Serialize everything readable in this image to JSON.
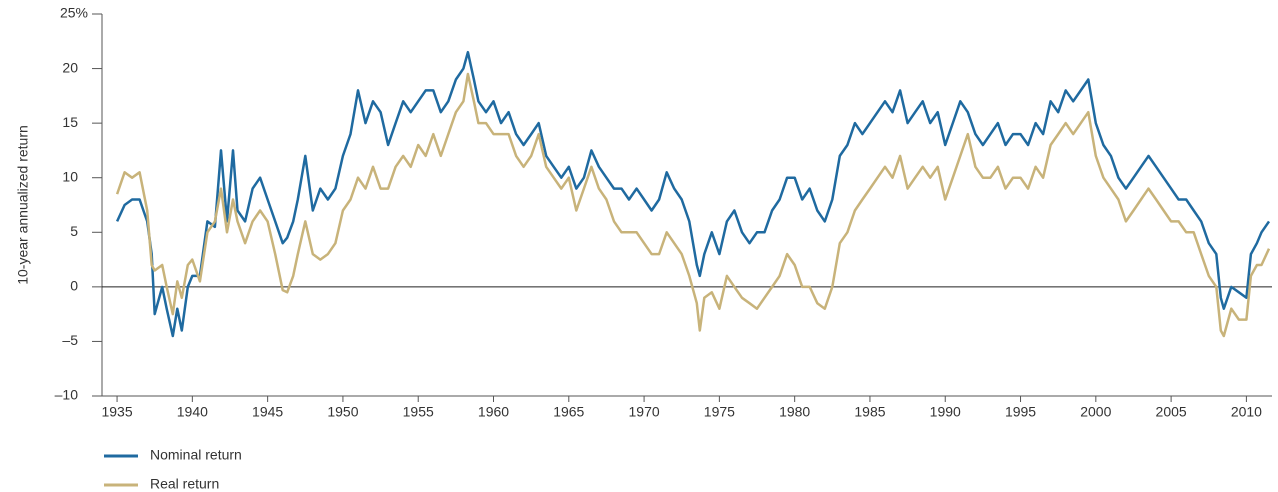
{
  "chart_data": {
    "type": "line",
    "y_label": "10-year annualized return",
    "x": [
      1935,
      1935.5,
      1936,
      1936.5,
      1937,
      1937.3,
      1937.5,
      1938,
      1938.3,
      1938.7,
      1939,
      1939.3,
      1939.7,
      1940,
      1940.5,
      1941,
      1941.5,
      1941.9,
      1942.3,
      1942.7,
      1943,
      1943.5,
      1944,
      1944.5,
      1945,
      1945.5,
      1946,
      1946.3,
      1946.7,
      1947,
      1947.5,
      1948,
      1948.5,
      1949,
      1949.5,
      1950,
      1950.5,
      1951,
      1951.5,
      1952,
      1952.5,
      1953,
      1953.5,
      1954,
      1954.5,
      1955,
      1955.5,
      1956,
      1956.5,
      1957,
      1957.5,
      1958,
      1958.3,
      1958.7,
      1959,
      1959.5,
      1960,
      1960.5,
      1961,
      1961.5,
      1962,
      1962.5,
      1963,
      1963.5,
      1964,
      1964.5,
      1965,
      1965.5,
      1966,
      1966.5,
      1967,
      1967.5,
      1968,
      1968.5,
      1969,
      1969.5,
      1970,
      1970.5,
      1971,
      1971.5,
      1972,
      1972.5,
      1973,
      1973.5,
      1973.7,
      1974,
      1974.5,
      1975,
      1975.5,
      1976,
      1976.5,
      1977,
      1977.5,
      1978,
      1978.5,
      1979,
      1979.5,
      1980,
      1980.5,
      1981,
      1981.5,
      1982,
      1982.5,
      1983,
      1983.5,
      1984,
      1984.5,
      1985,
      1985.5,
      1986,
      1986.5,
      1987,
      1987.5,
      1988,
      1988.5,
      1989,
      1989.5,
      1990,
      1990.5,
      1991,
      1991.5,
      1992,
      1992.5,
      1993,
      1993.5,
      1994,
      1994.5,
      1995,
      1995.5,
      1996,
      1996.5,
      1997,
      1997.5,
      1998,
      1998.5,
      1999,
      1999.5,
      2000,
      2000.5,
      2001,
      2001.5,
      2002,
      2002.5,
      2003,
      2003.5,
      2004,
      2004.5,
      2005,
      2005.5,
      2006,
      2006.5,
      2007,
      2007.5,
      2008,
      2008.3,
      2008.5,
      2009,
      2009.5,
      2010,
      2010.3,
      2010.7,
      2011,
      2011.5
    ],
    "series": [
      {
        "name": "Nominal return",
        "color": "#1f6aa0",
        "values": [
          6,
          7.5,
          8,
          8,
          6,
          3,
          -2.5,
          0,
          -2,
          -4.5,
          -2,
          -4,
          0,
          1,
          1,
          6,
          5.5,
          12.5,
          6,
          12.5,
          7,
          6,
          9,
          10,
          8,
          6,
          4,
          4.5,
          6,
          8,
          12,
          7,
          9,
          8,
          9,
          12,
          14,
          18,
          15,
          17,
          16,
          13,
          15,
          17,
          16,
          17,
          18,
          18,
          16,
          17,
          19,
          20,
          21.5,
          19,
          17,
          16,
          17,
          15,
          16,
          14,
          13,
          14,
          15,
          12,
          11,
          10,
          11,
          9,
          10,
          12.5,
          11,
          10,
          9,
          9,
          8,
          9,
          8,
          7,
          8,
          10.5,
          9,
          8,
          6,
          2,
          1,
          3,
          5,
          3,
          6,
          7,
          5,
          4,
          5,
          5,
          7,
          8,
          10,
          10,
          8,
          9,
          7,
          6,
          8,
          12,
          13,
          15,
          14,
          15,
          16,
          17,
          16,
          18,
          15,
          16,
          17,
          15,
          16,
          13,
          15,
          17,
          16,
          14,
          13,
          14,
          15,
          13,
          14,
          14,
          13,
          15,
          14,
          17,
          16,
          18,
          17,
          18,
          19,
          15,
          13,
          12,
          10,
          9,
          10,
          11,
          12,
          11,
          10,
          9,
          8,
          8,
          7,
          6,
          4,
          3,
          -1,
          -2,
          0,
          -0.5,
          -1,
          3,
          4,
          5,
          6
        ]
      },
      {
        "name": "Real return",
        "color": "#c8b37a",
        "values": [
          8.5,
          10.5,
          10,
          10.5,
          7,
          2,
          1.5,
          2,
          0,
          -2.5,
          0.5,
          -1,
          2,
          2.5,
          0.5,
          5,
          6,
          9,
          5,
          8,
          6,
          4,
          6,
          7,
          6,
          3,
          -0.3,
          -0.5,
          1,
          3,
          6,
          3,
          2.5,
          3,
          4,
          7,
          8,
          10,
          9,
          11,
          9,
          9,
          11,
          12,
          11,
          13,
          12,
          14,
          12,
          14,
          16,
          17,
          19.5,
          17,
          15,
          15,
          14,
          14,
          14,
          12,
          11,
          12,
          14,
          11,
          10,
          9,
          10,
          7,
          9,
          11,
          9,
          8,
          6,
          5,
          5,
          5,
          4,
          3,
          3,
          5,
          4,
          3,
          1,
          -1.5,
          -4,
          -1,
          -0.5,
          -2,
          1,
          0,
          -1,
          -1.5,
          -2,
          -1,
          0,
          1,
          3,
          2,
          0,
          0,
          -1.5,
          -2,
          0,
          4,
          5,
          7,
          8,
          9,
          10,
          11,
          10,
          12,
          9,
          10,
          11,
          10,
          11,
          8,
          10,
          12,
          14,
          11,
          10,
          10,
          11,
          9,
          10,
          10,
          9,
          11,
          10,
          13,
          14,
          15,
          14,
          15,
          16,
          12,
          10,
          9,
          8,
          6,
          7,
          8,
          9,
          8,
          7,
          6,
          6,
          5,
          5,
          3,
          1,
          0,
          -4,
          -4.5,
          -2,
          -3,
          -3,
          1,
          2,
          2,
          3.5
        ]
      }
    ],
    "xlim": [
      1934,
      2011.7
    ],
    "ylim": [
      -10,
      25
    ],
    "xticks": [
      1935,
      1940,
      1945,
      1950,
      1955,
      1960,
      1965,
      1970,
      1975,
      1980,
      1985,
      1990,
      1995,
      2000,
      2005,
      2010
    ],
    "yticks": [
      {
        "value": -10,
        "label": "–10"
      },
      {
        "value": -5,
        "label": "–5"
      },
      0,
      5,
      10,
      15,
      20,
      {
        "value": 25,
        "label": "25%"
      }
    ]
  }
}
